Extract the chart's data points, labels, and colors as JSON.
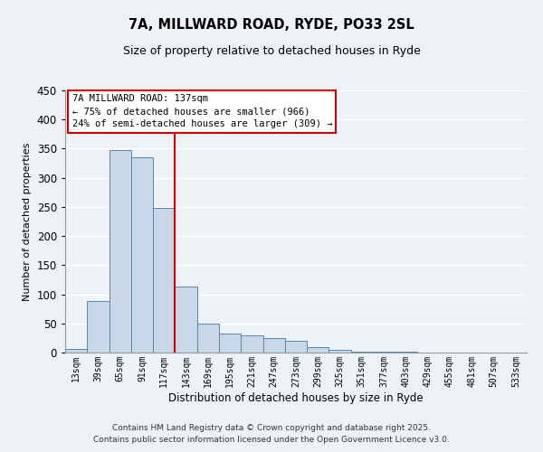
{
  "title": "7A, MILLWARD ROAD, RYDE, PO33 2SL",
  "subtitle": "Size of property relative to detached houses in Ryde",
  "xlabel": "Distribution of detached houses by size in Ryde",
  "ylabel": "Number of detached properties",
  "bar_labels": [
    "13sqm",
    "39sqm",
    "65sqm",
    "91sqm",
    "117sqm",
    "143sqm",
    "169sqm",
    "195sqm",
    "221sqm",
    "247sqm",
    "273sqm",
    "299sqm",
    "325sqm",
    "351sqm",
    "377sqm",
    "403sqm",
    "429sqm",
    "455sqm",
    "481sqm",
    "507sqm",
    "533sqm"
  ],
  "bar_values": [
    6,
    89,
    348,
    335,
    248,
    113,
    49,
    32,
    30,
    25,
    20,
    9,
    4,
    1,
    1,
    1,
    0,
    0,
    0,
    0,
    0
  ],
  "bar_color": "#c8d8e8",
  "bar_edge_color": "#5588aa",
  "vline_x_idx": 5,
  "vline_color": "#cc0000",
  "annotation_line1": "7A MILLWARD ROAD: 137sqm",
  "annotation_line2": "← 75% of detached houses are smaller (966)",
  "annotation_line3": "24% of semi-detached houses are larger (309) →",
  "ylim": [
    0,
    450
  ],
  "yticks": [
    0,
    50,
    100,
    150,
    200,
    250,
    300,
    350,
    400,
    450
  ],
  "footer_line1": "Contains HM Land Registry data © Crown copyright and database right 2025.",
  "footer_line2": "Contains public sector information licensed under the Open Government Licence v3.0.",
  "background_color": "#eef2f7",
  "grid_color": "#ffffff"
}
